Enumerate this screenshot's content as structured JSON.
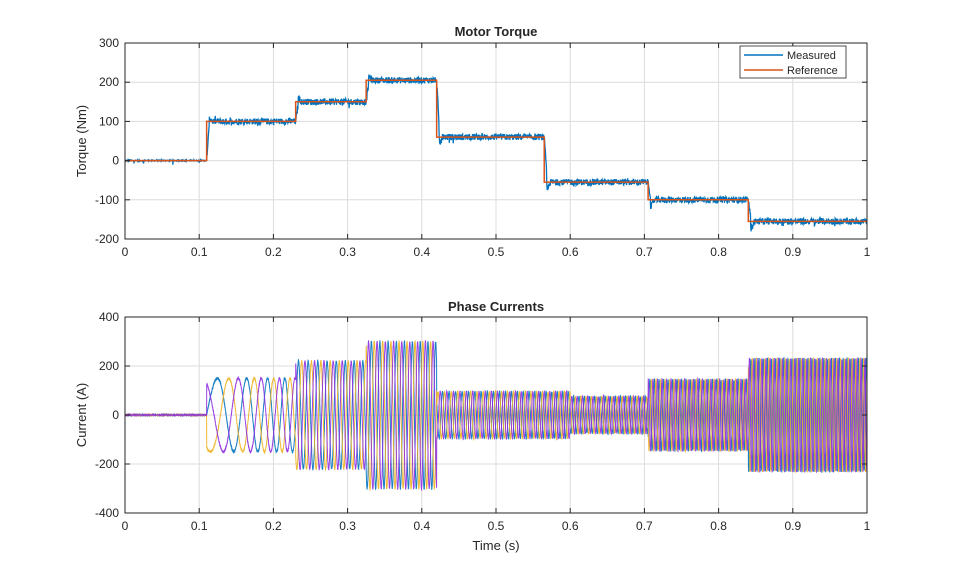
{
  "chart_data": [
    {
      "type": "line",
      "title": "Motor Torque",
      "xlabel": "",
      "ylabel": "Torque (Nm)",
      "xlim": [
        0,
        1
      ],
      "ylim": [
        -200,
        300
      ],
      "xticks": [
        "0",
        "0.1",
        "0.2",
        "0.3",
        "0.4",
        "0.5",
        "0.6",
        "0.7",
        "0.8",
        "0.9",
        "1"
      ],
      "yticks": [
        "-200",
        "-100",
        "0",
        "100",
        "200",
        "300"
      ],
      "grid": true,
      "legend_placement": "top-right",
      "series": [
        {
          "name": "Measured",
          "color": "#0072BD",
          "noise_amplitude": 8
        },
        {
          "name": "Reference",
          "color": "#D95319"
        }
      ],
      "steps": [
        {
          "t_start": 0,
          "t_end": 0.11,
          "torque": 0
        },
        {
          "t_start": 0.11,
          "t_end": 0.23,
          "torque": 100
        },
        {
          "t_start": 0.23,
          "t_end": 0.325,
          "torque": 150
        },
        {
          "t_start": 0.325,
          "t_end": 0.42,
          "torque": 205
        },
        {
          "t_start": 0.42,
          "t_end": 0.565,
          "torque": 60
        },
        {
          "t_start": 0.565,
          "t_end": 0.705,
          "torque": -55
        },
        {
          "t_start": 0.705,
          "t_end": 0.84,
          "torque": -100
        },
        {
          "t_start": 0.84,
          "t_end": 1.0,
          "torque": -155
        }
      ]
    },
    {
      "type": "line",
      "title": "Phase Currents",
      "xlabel": "Time (s)",
      "ylabel": "Current (A)",
      "xlim": [
        0,
        1
      ],
      "ylim": [
        -400,
        400
      ],
      "xticks": [
        "0",
        "0.1",
        "0.2",
        "0.3",
        "0.4",
        "0.5",
        "0.6",
        "0.7",
        "0.8",
        "0.9",
        "1"
      ],
      "yticks": [
        "-400",
        "-200",
        "0",
        "200",
        "400"
      ],
      "grid": true,
      "phase_colors": [
        "#0072BD",
        "#EDB120",
        "#8E2EE0"
      ],
      "amplitude_segments": [
        {
          "t_start": 0,
          "t_end": 0.11,
          "amplitude": 0
        },
        {
          "t_start": 0.11,
          "t_end": 0.23,
          "amplitude": 150
        },
        {
          "t_start": 0.23,
          "t_end": 0.325,
          "amplitude": 220
        },
        {
          "t_start": 0.325,
          "t_end": 0.42,
          "amplitude": 300
        },
        {
          "t_start": 0.42,
          "t_end": 0.6,
          "amplitude": 95
        },
        {
          "t_start": 0.6,
          "t_end": 0.705,
          "amplitude": 75
        },
        {
          "t_start": 0.705,
          "t_end": 0.84,
          "amplitude": 145
        },
        {
          "t_start": 0.84,
          "t_end": 1.0,
          "amplitude": 230
        }
      ]
    }
  ]
}
